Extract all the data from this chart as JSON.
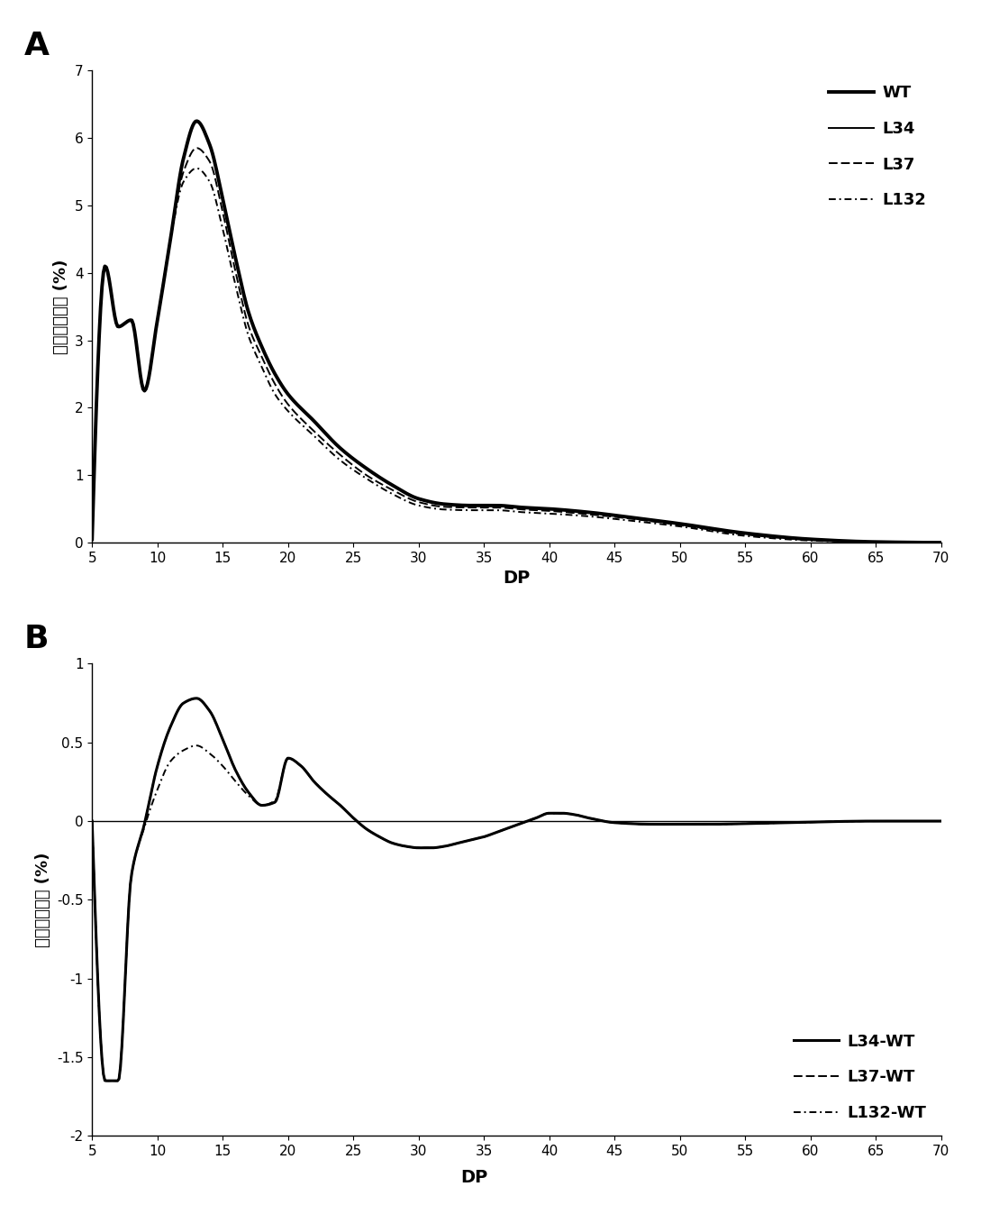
{
  "panel_A": {
    "title": "A",
    "xlabel": "DP",
    "ylabel": "峰面积百分比 (%)",
    "xlim": [
      5,
      70
    ],
    "ylim": [
      0,
      7
    ],
    "yticks": [
      0,
      1,
      2,
      3,
      4,
      5,
      6,
      7
    ],
    "xticks": [
      5,
      10,
      15,
      20,
      25,
      30,
      35,
      40,
      45,
      50,
      55,
      60,
      65,
      70
    ]
  },
  "panel_B": {
    "title": "B",
    "xlabel": "DP",
    "ylabel": "峰面积百分比 (%)",
    "xlim": [
      5,
      70
    ],
    "ylim": [
      -2,
      1
    ],
    "yticks": [
      -2.0,
      -1.5,
      -1.0,
      -0.5,
      0.0,
      0.5,
      1.0
    ],
    "ytick_labels": [
      "-2",
      "-1.5",
      "-1",
      "-0.5",
      "0",
      "0.5",
      "1"
    ],
    "xticks": [
      5,
      10,
      15,
      20,
      25,
      30,
      35,
      40,
      45,
      50,
      55,
      60,
      65,
      70
    ]
  }
}
